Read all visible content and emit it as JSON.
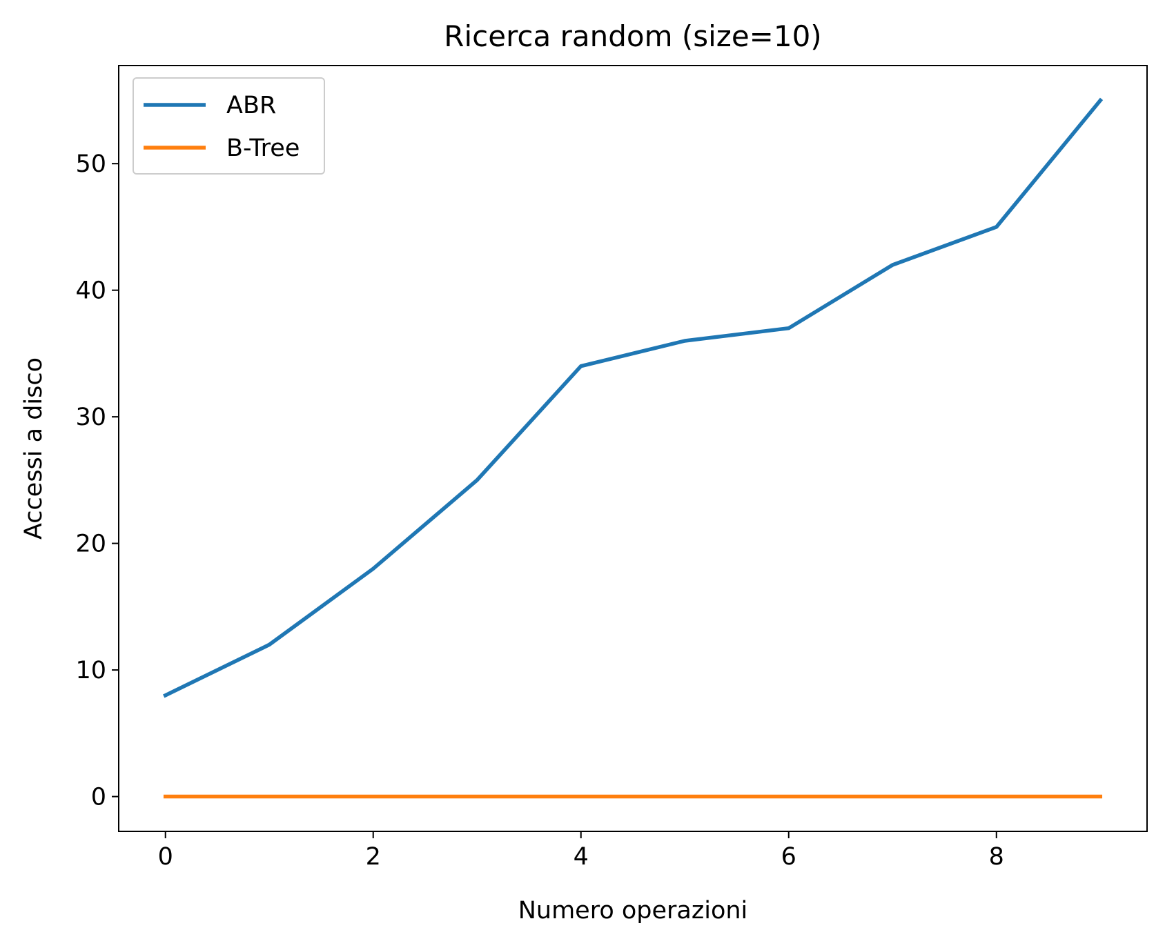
{
  "chart_data": {
    "type": "line",
    "title": "Ricerca random (size=10)",
    "xlabel": "Numero operazioni",
    "ylabel": "Accessi a disco",
    "x": [
      0,
      1,
      2,
      3,
      4,
      5,
      6,
      7,
      8,
      9
    ],
    "series": [
      {
        "name": "ABR",
        "color": "#1f77b4",
        "values": [
          8,
          12,
          18,
          25,
          34,
          36,
          37,
          42,
          45,
          55
        ]
      },
      {
        "name": "B-Tree",
        "color": "#ff7f0e",
        "values": [
          0,
          0,
          0,
          0,
          0,
          0,
          0,
          0,
          0,
          0
        ]
      }
    ],
    "xlim": [
      -0.45,
      9.45
    ],
    "ylim": [
      -2.75,
      57.75
    ],
    "xticks": [
      0,
      2,
      4,
      6,
      8
    ],
    "yticks": [
      0,
      10,
      20,
      30,
      40,
      50
    ],
    "grid": false,
    "legend_position": "top-left"
  }
}
